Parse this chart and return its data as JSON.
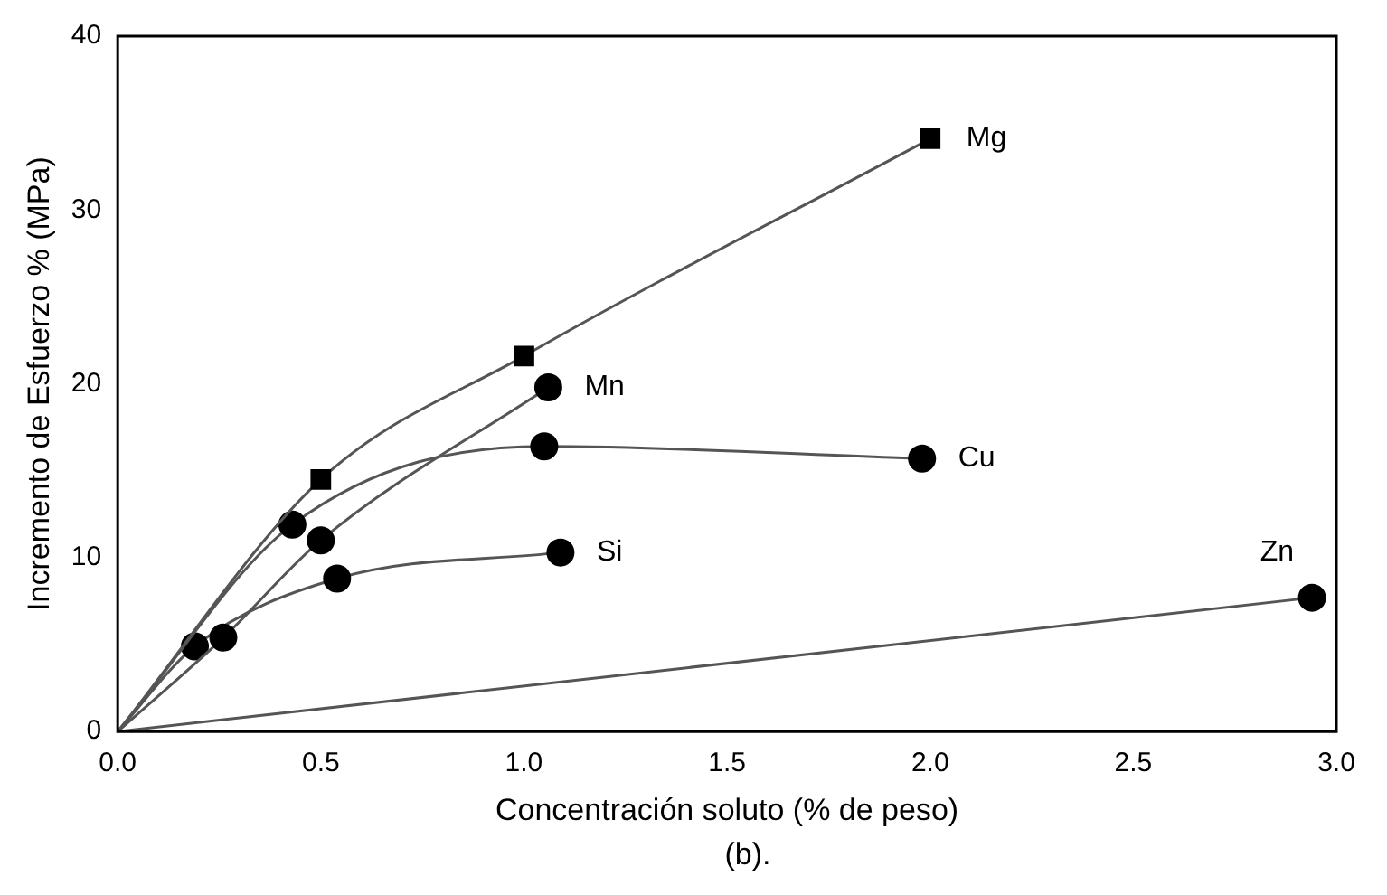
{
  "chart_data": {
    "type": "line",
    "xlabel": "Concentración soluto (% de peso)",
    "ylabel": "Incremento de Esfuerzo % (MPa)",
    "annotations": [
      "(b)."
    ],
    "xlim": [
      0,
      3
    ],
    "xticks": [
      {
        "value": 0,
        "label": "0.0"
      },
      0.5,
      {
        "value": 1,
        "label": "1.0"
      },
      1.5,
      {
        "value": 2,
        "label": "2.0"
      },
      2.5,
      {
        "value": 3,
        "label": "3.0"
      }
    ],
    "ylim": [
      0,
      40
    ],
    "yticks": [
      0,
      10,
      20,
      30,
      40
    ],
    "grid": false,
    "legend": false,
    "series": [
      {
        "name": "Mg",
        "color": "#555555",
        "marker": "square",
        "x": [
          0,
          0.5,
          1.0,
          2.0
        ],
        "values": [
          0,
          14.5,
          21.6,
          34.1
        ]
      },
      {
        "name": "Mn",
        "color": "#555555",
        "marker": "circle",
        "x": [
          0,
          0.26,
          0.5,
          1.06
        ],
        "values": [
          0,
          5.4,
          11.0,
          19.8
        ]
      },
      {
        "name": "Cu",
        "color": "#555555",
        "marker": "circle",
        "x": [
          0,
          0.43,
          1.05,
          1.98
        ],
        "values": [
          0,
          11.9,
          16.4,
          15.7
        ]
      },
      {
        "name": "Si",
        "color": "#555555",
        "marker": "circle",
        "x": [
          0,
          0.19,
          0.54,
          1.09
        ],
        "values": [
          0,
          4.9,
          8.8,
          10.3
        ]
      },
      {
        "name": "Zn",
        "color": "#555555",
        "marker": "circle",
        "x": [
          0,
          2.94
        ],
        "values": [
          0,
          7.7
        ]
      }
    ]
  }
}
